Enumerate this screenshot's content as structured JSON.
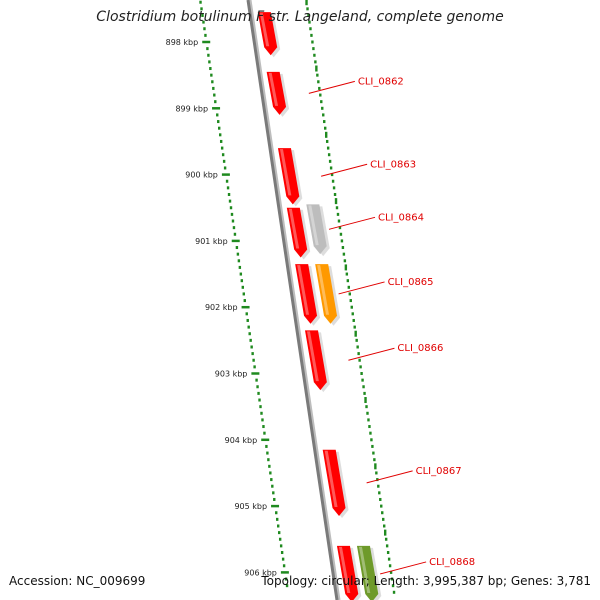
{
  "title": "Clostridium botulinum F str. Langeland, complete genome",
  "footer": {
    "accession": "Accession: NC_009699",
    "summary": "Topology: circular; Length: 3,995,387 bp; Genes: 3,781"
  },
  "colors": {
    "backbone": "#7a7a7a",
    "tick": "#1f8a1f",
    "gene_red": "#ff0000",
    "gene_grey": "#bdbdbd",
    "gene_orange": "#ff9900",
    "gene_olive": "#6e9a2a",
    "label_red": "#e00000"
  },
  "chart_data": {
    "type": "genome-map",
    "topology": "circular",
    "axis_unit": "kbp",
    "ticks": [
      {
        "value": 898,
        "label": "898 kbp"
      },
      {
        "value": 899,
        "label": "899 kbp"
      },
      {
        "value": 900,
        "label": "900 kbp"
      },
      {
        "value": 901,
        "label": "901 kbp"
      },
      {
        "value": 902,
        "label": "902 kbp"
      },
      {
        "value": 903,
        "label": "903 kbp"
      },
      {
        "value": 904,
        "label": "904 kbp"
      },
      {
        "value": 905,
        "label": "905 kbp"
      },
      {
        "value": 906,
        "label": "906 kbp"
      }
    ],
    "genes": [
      {
        "start": 897.55,
        "end": 898.2,
        "track": 0,
        "color": "gene_red",
        "label": ""
      },
      {
        "start": 898.45,
        "end": 899.1,
        "track": 0,
        "color": "gene_red",
        "label": "CLI_0862"
      },
      {
        "start": 899.6,
        "end": 900.45,
        "track": 0,
        "color": "gene_red",
        "label": "CLI_0863"
      },
      {
        "start": 900.5,
        "end": 901.25,
        "track": 0,
        "color": "gene_red",
        "label": ""
      },
      {
        "start": 900.45,
        "end": 901.2,
        "track": 1,
        "color": "gene_grey",
        "label": "CLI_0864"
      },
      {
        "start": 901.35,
        "end": 902.25,
        "track": 0,
        "color": "gene_red",
        "label": ""
      },
      {
        "start": 901.35,
        "end": 902.25,
        "track": 1,
        "color": "gene_orange",
        "label": "CLI_0865"
      },
      {
        "start": 902.35,
        "end": 903.25,
        "track": 0,
        "color": "gene_red",
        "label": "CLI_0866"
      },
      {
        "start": 904.15,
        "end": 905.15,
        "track": 0,
        "color": "gene_red",
        "label": "CLI_0867"
      },
      {
        "start": 905.6,
        "end": 906.6,
        "track": 0,
        "color": "gene_red",
        "label": ""
      },
      {
        "start": 905.6,
        "end": 906.6,
        "track": 1,
        "color": "gene_olive",
        "label": "CLI_0868"
      }
    ]
  }
}
